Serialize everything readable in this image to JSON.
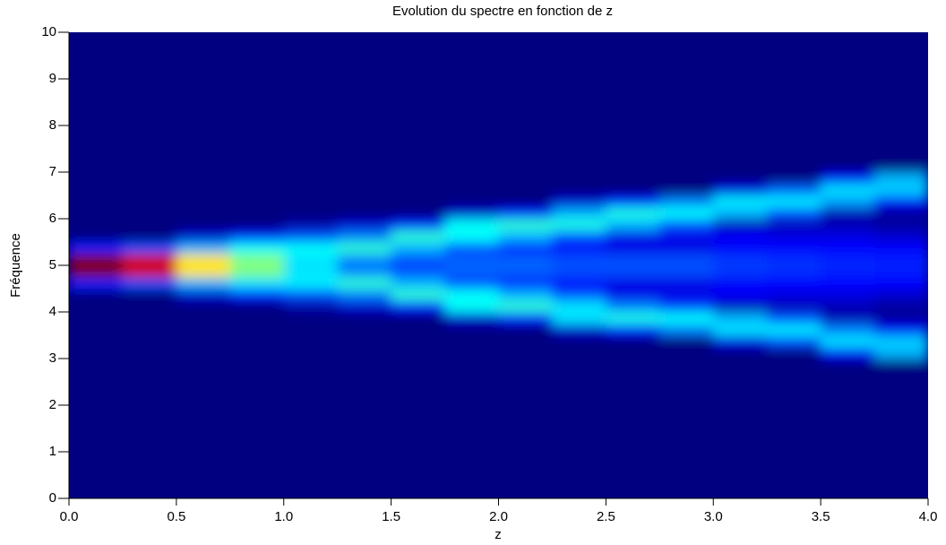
{
  "chart_data": {
    "type": "heatmap",
    "title": "Evolution du spectre en fonction de z",
    "x_label": "z",
    "y_label": "Fréquence",
    "colormap": "jet",
    "x_bins": [
      0,
      0.25,
      0.5,
      0.75,
      1,
      1.25,
      1.5,
      1.75,
      2,
      2.25,
      2.5,
      2.75,
      3,
      3.25,
      3.5,
      3.75,
      4
    ],
    "y_bins": [
      0,
      0.25,
      0.5,
      0.75,
      1,
      1.25,
      1.5,
      1.75,
      2,
      2.25,
      2.5,
      2.75,
      3,
      3.25,
      3.5,
      3.75,
      4,
      4.25,
      4.5,
      4.75,
      5,
      5.25,
      5.5,
      5.75,
      6,
      6.25,
      6.5,
      6.75,
      7,
      7.25,
      7.5,
      7.75,
      8,
      8.25,
      8.5,
      8.75,
      9,
      9.25,
      9.5,
      9.75,
      10
    ],
    "values": [
      [
        0,
        0,
        0,
        0,
        0,
        0,
        0,
        0,
        0,
        0,
        0,
        0,
        0,
        0,
        0,
        0,
        0,
        0,
        0.15,
        1,
        1,
        0.15,
        0,
        0,
        0,
        0,
        0,
        0,
        0,
        0,
        0,
        0,
        0,
        0,
        0,
        0,
        0,
        0,
        0,
        0
      ],
      [
        0,
        0,
        0,
        0,
        0,
        0,
        0,
        0,
        0,
        0,
        0,
        0,
        0,
        0,
        0,
        0,
        0,
        0,
        0.2,
        0.92,
        0.92,
        0.2,
        0,
        0,
        0,
        0,
        0,
        0,
        0,
        0,
        0,
        0,
        0,
        0,
        0,
        0,
        0,
        0,
        0,
        0
      ],
      [
        0,
        0,
        0,
        0,
        0,
        0,
        0,
        0,
        0,
        0,
        0,
        0,
        0,
        0,
        0,
        0,
        0,
        0.08,
        0.3,
        0.65,
        0.65,
        0.3,
        0.08,
        0,
        0,
        0,
        0,
        0,
        0,
        0,
        0,
        0,
        0,
        0,
        0,
        0,
        0,
        0,
        0,
        0
      ],
      [
        0,
        0,
        0,
        0,
        0,
        0,
        0,
        0,
        0,
        0,
        0,
        0,
        0,
        0,
        0,
        0,
        0,
        0.15,
        0.35,
        0.5,
        0.5,
        0.38,
        0.15,
        0,
        0,
        0,
        0,
        0,
        0,
        0,
        0,
        0,
        0,
        0,
        0,
        0,
        0,
        0,
        0,
        0
      ],
      [
        0,
        0,
        0,
        0,
        0,
        0,
        0,
        0,
        0,
        0,
        0,
        0,
        0,
        0,
        0,
        0,
        0.04,
        0.2,
        0.36,
        0.35,
        0.35,
        0.38,
        0.2,
        0.04,
        0,
        0,
        0,
        0,
        0,
        0,
        0,
        0,
        0,
        0,
        0,
        0,
        0,
        0,
        0,
        0
      ],
      [
        0,
        0,
        0,
        0,
        0,
        0,
        0,
        0,
        0,
        0,
        0,
        0,
        0,
        0,
        0,
        0,
        0.08,
        0.25,
        0.42,
        0.25,
        0.25,
        0.42,
        0.25,
        0.08,
        0,
        0,
        0,
        0,
        0,
        0,
        0,
        0,
        0,
        0,
        0,
        0,
        0,
        0,
        0,
        0
      ],
      [
        0,
        0,
        0,
        0,
        0,
        0,
        0,
        0,
        0,
        0,
        0,
        0,
        0,
        0,
        0,
        0,
        0.15,
        0.42,
        0.3,
        0.2,
        0.2,
        0.3,
        0.42,
        0.15,
        0,
        0,
        0,
        0,
        0,
        0,
        0,
        0,
        0,
        0,
        0,
        0,
        0,
        0,
        0,
        0
      ],
      [
        0,
        0,
        0,
        0,
        0,
        0,
        0,
        0,
        0,
        0,
        0,
        0,
        0,
        0,
        0,
        0.08,
        0.38,
        0.38,
        0.2,
        0.22,
        0.22,
        0.2,
        0.38,
        0.38,
        0.08,
        0,
        0,
        0,
        0,
        0,
        0,
        0,
        0,
        0,
        0,
        0,
        0,
        0,
        0,
        0
      ],
      [
        0,
        0,
        0,
        0,
        0,
        0,
        0,
        0,
        0,
        0,
        0,
        0,
        0,
        0,
        0,
        0.15,
        0.42,
        0.3,
        0.15,
        0.22,
        0.22,
        0.15,
        0.3,
        0.42,
        0.15,
        0,
        0,
        0,
        0,
        0,
        0,
        0,
        0,
        0,
        0,
        0,
        0,
        0,
        0,
        0
      ],
      [
        0,
        0,
        0,
        0,
        0,
        0,
        0,
        0,
        0,
        0,
        0,
        0,
        0,
        0,
        0.08,
        0.35,
        0.35,
        0.2,
        0.12,
        0.2,
        0.2,
        0.12,
        0.2,
        0.4,
        0.3,
        0.08,
        0,
        0,
        0,
        0,
        0,
        0,
        0,
        0,
        0,
        0,
        0,
        0,
        0,
        0
      ],
      [
        0,
        0,
        0,
        0,
        0,
        0,
        0,
        0,
        0,
        0,
        0,
        0,
        0,
        0,
        0.15,
        0.4,
        0.25,
        0.1,
        0.1,
        0.2,
        0.2,
        0.1,
        0.1,
        0.3,
        0.4,
        0.15,
        0,
        0,
        0,
        0,
        0,
        0,
        0,
        0,
        0,
        0,
        0,
        0,
        0,
        0
      ],
      [
        0,
        0,
        0,
        0,
        0,
        0,
        0,
        0,
        0,
        0,
        0,
        0,
        0,
        0,
        0.25,
        0.38,
        0.18,
        0.1,
        0.1,
        0.2,
        0.2,
        0.1,
        0.1,
        0.2,
        0.38,
        0.25,
        0,
        0,
        0,
        0,
        0,
        0,
        0,
        0,
        0,
        0,
        0,
        0,
        0,
        0
      ],
      [
        0,
        0,
        0,
        0,
        0,
        0,
        0,
        0,
        0,
        0,
        0,
        0,
        0,
        0.1,
        0.35,
        0.3,
        0.05,
        0.12,
        0.12,
        0.18,
        0.18,
        0.12,
        0.12,
        0.05,
        0.3,
        0.36,
        0.1,
        0,
        0,
        0,
        0,
        0,
        0,
        0,
        0,
        0,
        0,
        0,
        0,
        0
      ],
      [
        0,
        0,
        0,
        0,
        0,
        0,
        0,
        0,
        0,
        0,
        0,
        0,
        0,
        0.2,
        0.36,
        0.2,
        0.05,
        0.1,
        0.13,
        0.17,
        0.17,
        0.13,
        0.1,
        0.05,
        0.2,
        0.36,
        0.22,
        0,
        0,
        0,
        0,
        0,
        0,
        0,
        0,
        0,
        0,
        0,
        0,
        0
      ],
      [
        0,
        0,
        0,
        0,
        0,
        0,
        0,
        0,
        0,
        0,
        0,
        0,
        0.12,
        0.35,
        0.25,
        0.05,
        0.05,
        0.1,
        0.13,
        0.16,
        0.16,
        0.13,
        0.1,
        0.05,
        0.05,
        0.28,
        0.35,
        0.12,
        0,
        0,
        0,
        0,
        0,
        0,
        0,
        0,
        0,
        0,
        0,
        0
      ],
      [
        0,
        0,
        0,
        0,
        0,
        0,
        0,
        0,
        0,
        0,
        0,
        0,
        0.3,
        0.33,
        0.12,
        0.03,
        0.03,
        0.08,
        0.13,
        0.15,
        0.15,
        0.13,
        0.08,
        0.03,
        0.03,
        0.12,
        0.33,
        0.3,
        0,
        0,
        0,
        0,
        0,
        0,
        0,
        0,
        0,
        0,
        0,
        0
      ]
    ],
    "xlim": [
      0,
      4
    ],
    "xticks": [
      {
        "value": 0,
        "label": "0.0"
      },
      0.5,
      {
        "value": 1,
        "label": "1.0"
      },
      1.5,
      {
        "value": 2,
        "label": "2.0"
      },
      2.5,
      {
        "value": 3,
        "label": "3.0"
      },
      3.5,
      {
        "value": 4,
        "label": "4.0"
      }
    ],
    "ylim": [
      0,
      10
    ],
    "yticks": [
      0,
      1,
      2,
      3,
      4,
      5,
      6,
      7,
      8,
      9,
      10
    ]
  }
}
